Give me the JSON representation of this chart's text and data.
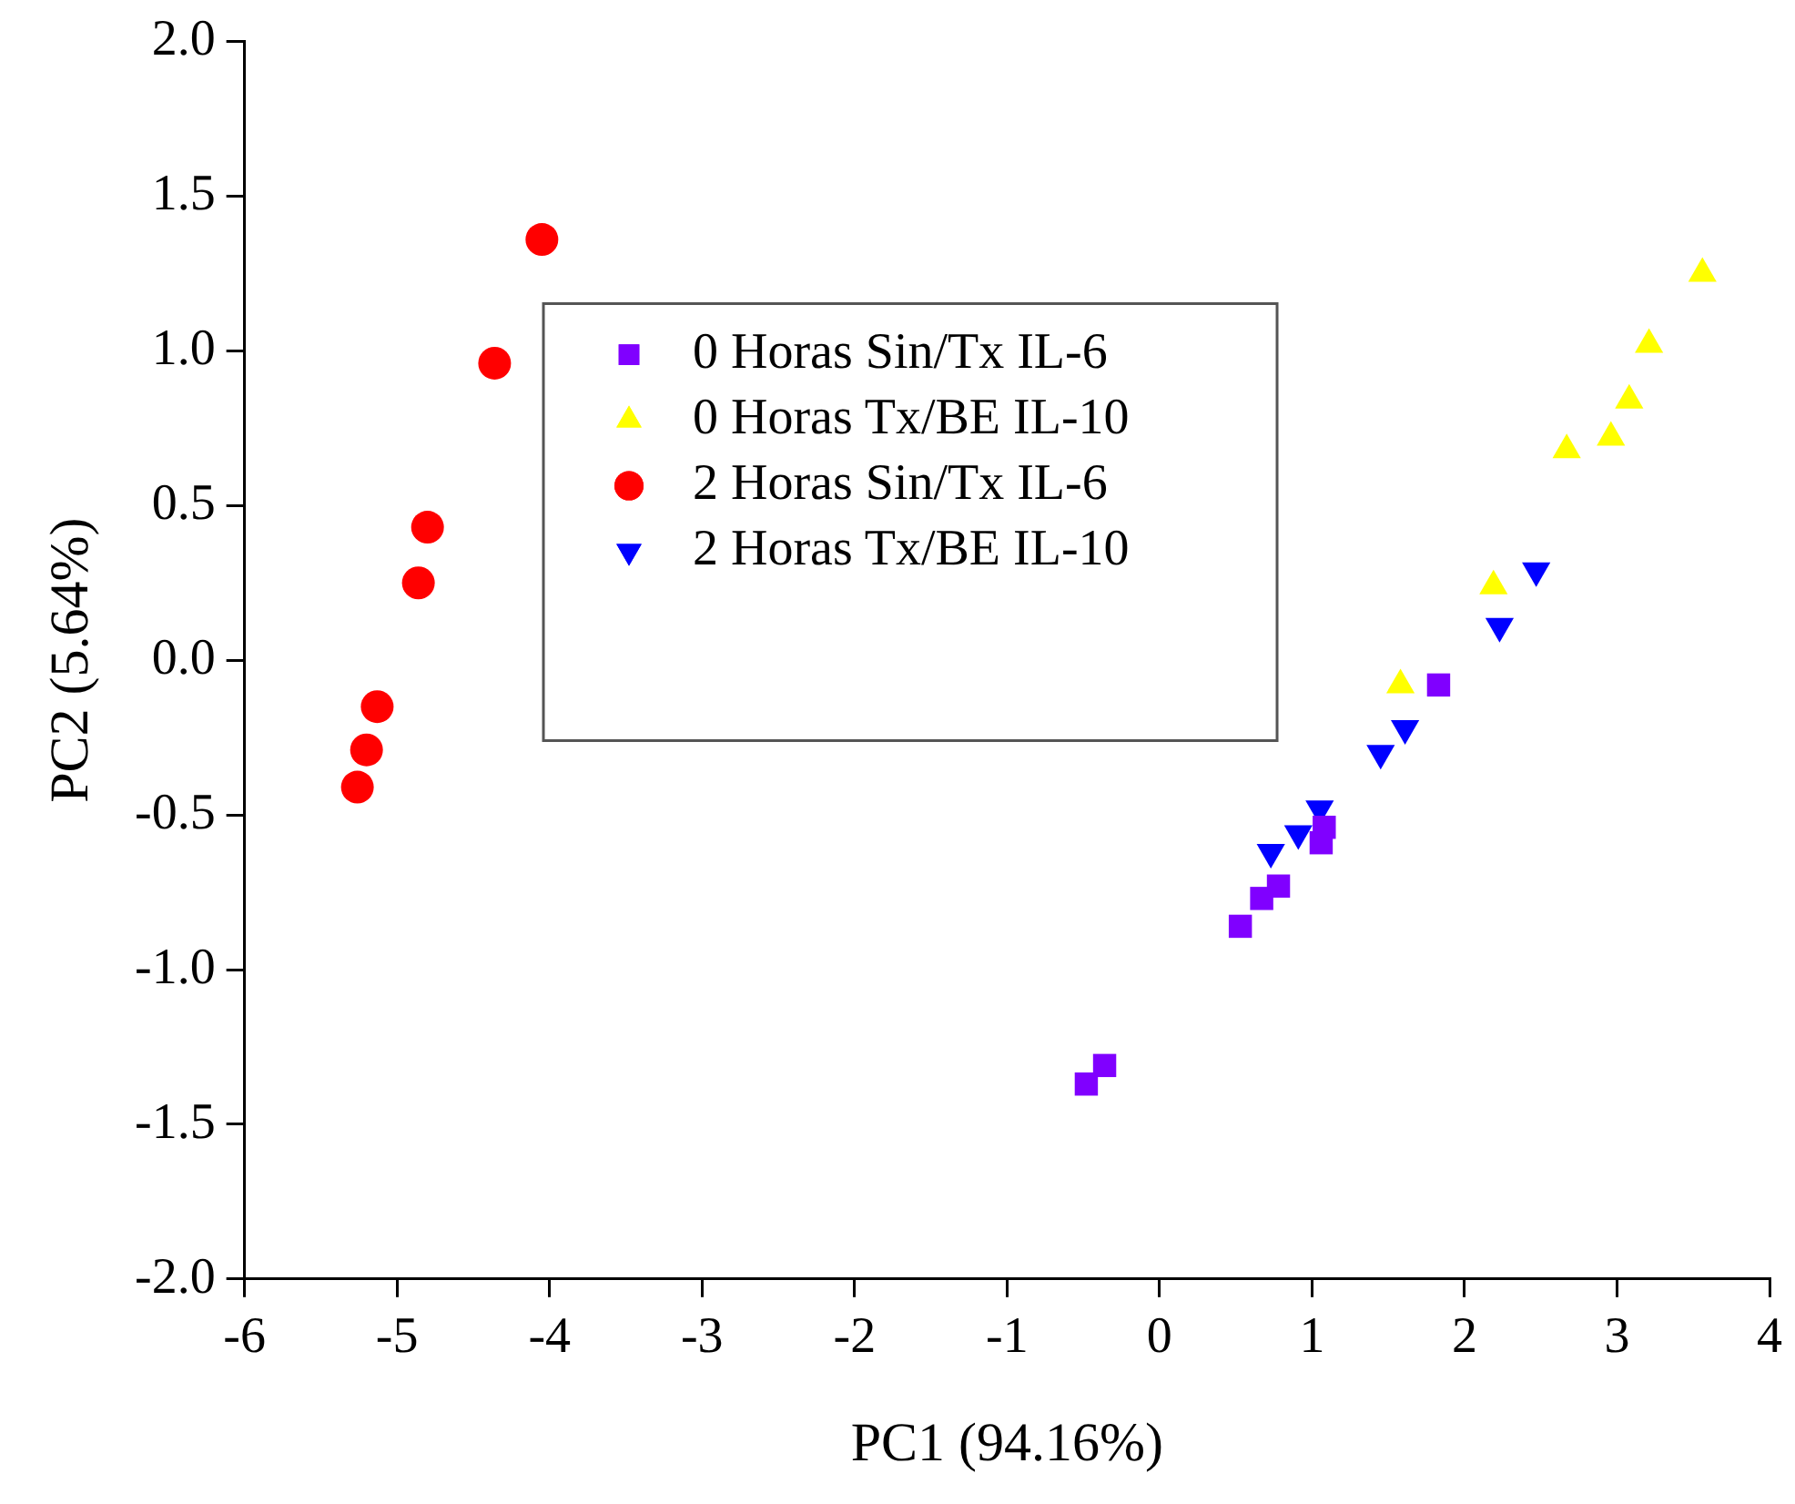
{
  "chart_data": {
    "type": "scatter",
    "xlabel": "PC1 (94.16%)",
    "ylabel": "PC2 (5.64%)",
    "xlim": [
      -6,
      4
    ],
    "xticks": [
      -6,
      -5,
      -4,
      -3,
      -2,
      -1,
      0,
      1,
      2,
      3,
      4
    ],
    "ylim": [
      -2,
      2
    ],
    "yticks": [
      {
        "value": -2,
        "label": "-2.0"
      },
      {
        "value": -1.5,
        "label": "-1.5"
      },
      {
        "value": -1,
        "label": "-1.0"
      },
      {
        "value": -0.5,
        "label": "-0.5"
      },
      {
        "value": 0,
        "label": "0.0"
      },
      {
        "value": 0.5,
        "label": "0.5"
      },
      {
        "value": 1,
        "label": "1.0"
      },
      {
        "value": 1.5,
        "label": "1.5"
      },
      {
        "value": 2,
        "label": "2.0"
      }
    ],
    "grid": false,
    "legend": "top",
    "series": [
      {
        "name": "0 Horas Sin/Tx IL-6",
        "color": "#8000ff",
        "marker": "square",
        "x": [
          -0.48,
          -0.36,
          0.53,
          0.67,
          0.78,
          1.06,
          1.08,
          1.83
        ],
        "values": [
          -1.37,
          -1.31,
          -0.86,
          -0.77,
          -0.73,
          -0.59,
          -0.54,
          -0.08
        ]
      },
      {
        "name": "0 Horas Tx/BE IL-10",
        "color": "#ffff00",
        "marker": "triangle",
        "x": [
          3.56,
          3.21,
          3.08,
          2.96,
          2.67,
          2.19,
          1.58
        ],
        "values": [
          1.25,
          1.02,
          0.84,
          0.72,
          0.68,
          0.24,
          -0.08
        ]
      },
      {
        "name": "2 Horas Sin/Tx IL-6",
        "color": "#ff0000",
        "marker": "circle",
        "x": [
          -4.05,
          -4.36,
          -4.8,
          -4.86,
          -5.13,
          -5.2,
          -5.26
        ],
        "values": [
          1.36,
          0.96,
          0.43,
          0.25,
          -0.15,
          -0.29,
          -0.41
        ]
      },
      {
        "name": "2 Horas Tx/BE IL-10",
        "color": "#0000ff",
        "marker": "triangle-down",
        "x": [
          2.47,
          2.23,
          1.61,
          1.45,
          1.05,
          0.91,
          0.73
        ],
        "values": [
          0.29,
          0.11,
          -0.22,
          -0.3,
          -0.48,
          -0.56,
          -0.62
        ]
      }
    ]
  }
}
